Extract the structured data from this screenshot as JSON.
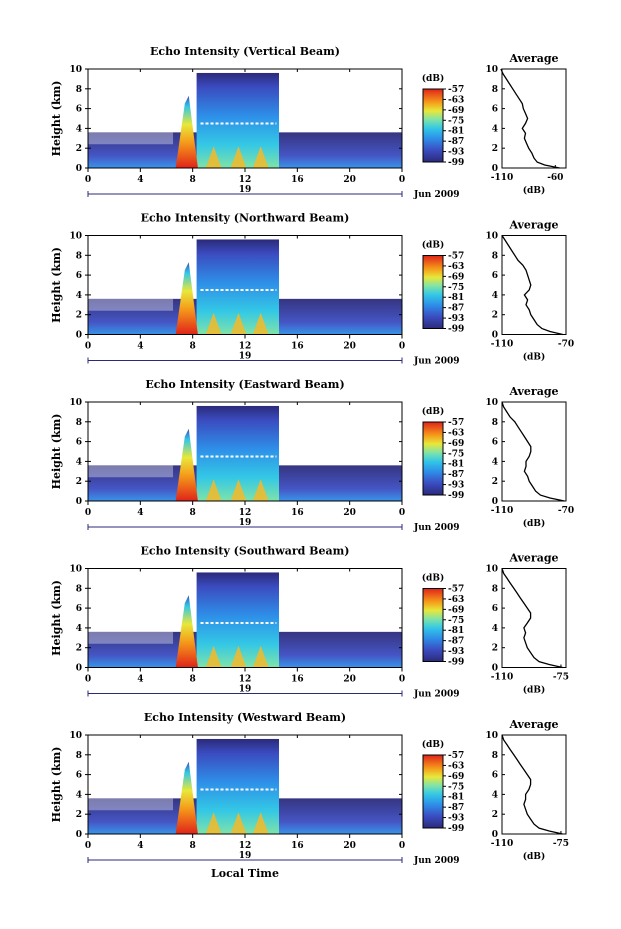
{
  "chart_data": {
    "type": "heatmap",
    "xlabel": "Local Time",
    "date_label": "Jun 2009",
    "x_ticks": [
      "0",
      "4",
      "8",
      "12",
      "16",
      "20",
      "0"
    ],
    "date_day": "19",
    "ylabel": "Height (km)",
    "y_ticks": [
      "0",
      "2",
      "4",
      "6",
      "8",
      "10"
    ],
    "ylim": [
      0,
      10
    ],
    "xlim": [
      0,
      24
    ],
    "colorbar_title": "(dB)",
    "colorbar_ticks": [
      "-57",
      "-63",
      "-69",
      "-75",
      "-81",
      "-87",
      "-93",
      "-99"
    ],
    "colorbar_range": [
      -99,
      -57
    ],
    "average_title": "Average",
    "average_xlabel": "(dB)",
    "average_y_ticks": [
      "0",
      "2",
      "4",
      "6",
      "8",
      "10"
    ],
    "panels": [
      {
        "title": "Echo Intensity (Vertical Beam)",
        "average_x_ticks": [
          "-110",
          "-60"
        ],
        "average_xlim": [
          -110,
          -50
        ],
        "average_profile": {
          "height": [
            0,
            0.3,
            0.6,
            1,
            1.5,
            2,
            2.5,
            3,
            3.5,
            4,
            4.5,
            5,
            5.5,
            6,
            6.5,
            7,
            7.5,
            8,
            8.5,
            9,
            9.5,
            10
          ],
          "db": [
            -56,
            -70,
            -77,
            -80,
            -82,
            -85,
            -87,
            -89,
            -88,
            -91,
            -88,
            -86,
            -88,
            -90,
            -91,
            -94,
            -97,
            -100,
            -103,
            -106,
            -109,
            -111
          ]
        }
      },
      {
        "title": "Echo Intensity (Northward Beam)",
        "average_x_ticks": [
          "-110",
          "-70"
        ],
        "average_xlim": [
          -110,
          -70
        ],
        "average_profile": {
          "height": [
            0,
            0.3,
            0.6,
            1,
            1.5,
            2,
            2.5,
            3,
            3.5,
            4,
            4.5,
            5,
            5.5,
            6,
            6.5,
            7,
            7.5,
            8,
            8.5,
            9,
            9.5,
            10
          ],
          "db": [
            -72,
            -80,
            -85,
            -88,
            -90,
            -92,
            -93,
            -95,
            -94,
            -96,
            -93,
            -92,
            -93,
            -94,
            -95,
            -97,
            -100,
            -102,
            -104,
            -106,
            -108,
            -110
          ]
        }
      },
      {
        "title": "Echo Intensity (Eastward Beam)",
        "average_x_ticks": [
          "-110",
          "-70"
        ],
        "average_xlim": [
          -110,
          -70
        ],
        "average_profile": {
          "height": [
            0,
            0.3,
            0.6,
            1,
            1.5,
            2,
            2.5,
            3,
            3.5,
            4,
            4.5,
            5,
            5.5,
            6,
            6.5,
            7,
            7.5,
            8,
            8.5,
            9,
            9.5,
            10
          ],
          "db": [
            -71,
            -80,
            -86,
            -89,
            -91,
            -93,
            -94,
            -96,
            -95,
            -95,
            -93,
            -92,
            -92,
            -94,
            -96,
            -98,
            -100,
            -102,
            -105,
            -107,
            -109,
            -110
          ]
        }
      },
      {
        "title": "Echo Intensity (Southward Beam)",
        "average_x_ticks": [
          "-110",
          "-75"
        ],
        "average_xlim": [
          -110,
          -72
        ],
        "average_profile": {
          "height": [
            0,
            0.3,
            0.6,
            1,
            1.5,
            2,
            2.5,
            3,
            3.5,
            4,
            4.5,
            5,
            5.5,
            6,
            6.5,
            7,
            7.5,
            8,
            8.5,
            9,
            9.5,
            10
          ],
          "db": [
            -74,
            -82,
            -88,
            -91,
            -93,
            -95,
            -96,
            -97,
            -96,
            -97,
            -95,
            -93,
            -93,
            -95,
            -97,
            -99,
            -101,
            -103,
            -105,
            -107,
            -109,
            -110
          ]
        }
      },
      {
        "title": "Echo Intensity (Westward Beam)",
        "average_x_ticks": [
          "-110",
          "-75"
        ],
        "average_xlim": [
          -110,
          -72
        ],
        "average_profile": {
          "height": [
            0,
            0.3,
            0.6,
            1,
            1.5,
            2,
            2.5,
            3,
            3.5,
            4,
            4.5,
            5,
            5.5,
            6,
            6.5,
            7,
            7.5,
            8,
            8.5,
            9,
            9.5,
            10
          ],
          "db": [
            -74,
            -82,
            -88,
            -91,
            -93,
            -95,
            -96,
            -97,
            -96,
            -96,
            -94,
            -93,
            -93,
            -95,
            -97,
            -99,
            -101,
            -103,
            -105,
            -107,
            -109,
            -110
          ]
        }
      }
    ]
  }
}
